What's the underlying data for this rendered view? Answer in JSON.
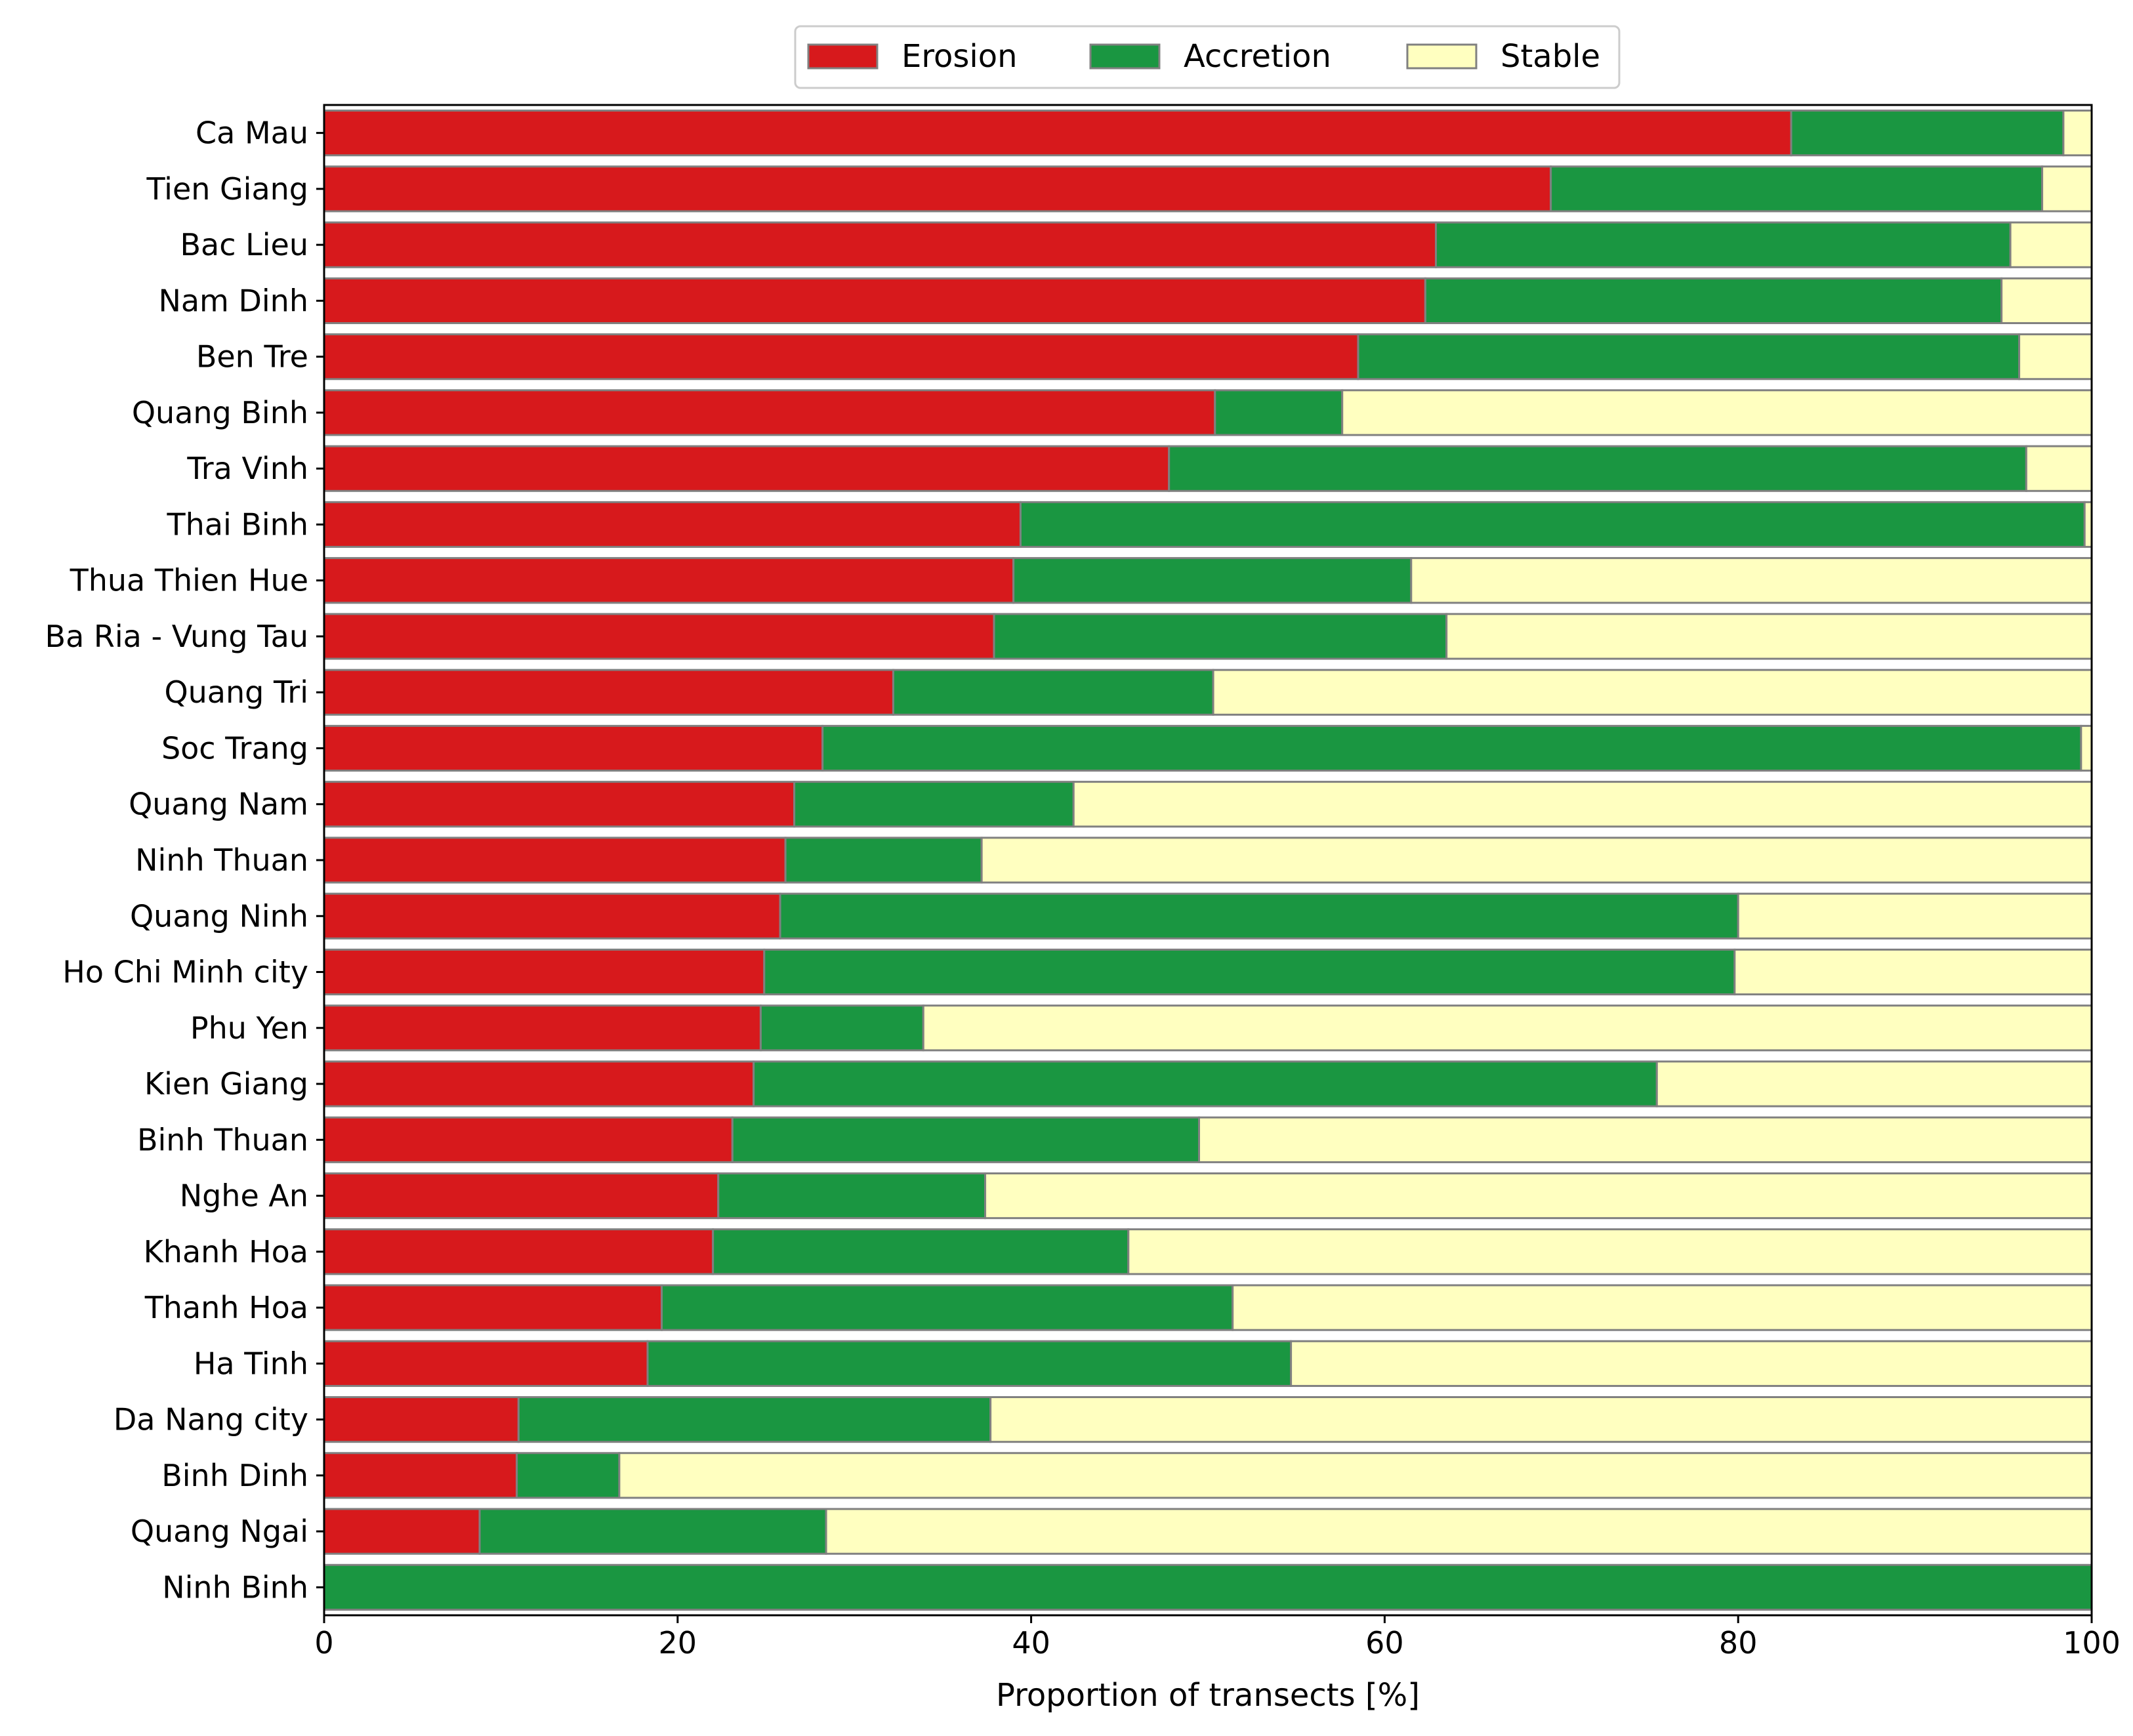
{
  "chart_data": {
    "type": "bar",
    "orientation": "horizontal",
    "stacked": true,
    "title": "",
    "xlabel": "Proportion of transects [%]",
    "ylabel": "",
    "xlim": [
      0,
      100
    ],
    "xticks": [
      0,
      20,
      40,
      60,
      80,
      100
    ],
    "grid": false,
    "legend_position": "top-center",
    "categories": [
      "Ca Mau",
      "Tien Giang",
      "Bac Lieu",
      "Nam Dinh",
      "Ben Tre",
      "Quang Binh",
      "Tra Vinh",
      "Thai Binh",
      "Thua Thien Hue",
      "Ba Ria - Vung Tau",
      "Quang Tri",
      "Soc Trang",
      "Quang Nam",
      "Ninh Thuan",
      "Quang Ninh",
      "Ho Chi Minh city",
      "Phu Yen",
      "Kien Giang",
      "Binh Thuan",
      "Nghe An",
      "Khanh Hoa",
      "Thanh Hoa",
      "Ha Tinh",
      "Da Nang city",
      "Binh Dinh",
      "Quang Ngai",
      "Ninh Binh"
    ],
    "series": [
      {
        "name": "Erosion",
        "color": "#d7191c",
        "values": [
          83.0,
          69.4,
          62.9,
          62.3,
          58.5,
          50.4,
          47.8,
          39.4,
          39.0,
          37.9,
          32.2,
          28.2,
          26.6,
          26.1,
          25.8,
          24.9,
          24.7,
          24.3,
          23.1,
          22.3,
          22.0,
          19.1,
          18.3,
          11.0,
          10.9,
          8.8,
          0.0
        ]
      },
      {
        "name": "Accretion",
        "color": "#1a9641",
        "values": [
          15.4,
          27.8,
          32.5,
          32.6,
          37.4,
          7.2,
          48.5,
          60.2,
          22.5,
          25.6,
          18.1,
          71.2,
          15.8,
          11.1,
          54.2,
          54.9,
          9.2,
          51.1,
          26.4,
          15.1,
          23.5,
          32.3,
          36.4,
          26.7,
          5.8,
          19.6,
          100.0
        ]
      },
      {
        "name": "Stable",
        "color": "#ffffc0",
        "values": [
          1.6,
          2.8,
          4.6,
          5.1,
          4.1,
          42.4,
          3.7,
          0.4,
          38.5,
          36.5,
          49.7,
          0.6,
          57.6,
          62.8,
          20.0,
          20.2,
          66.1,
          24.6,
          50.5,
          62.6,
          54.5,
          48.6,
          45.3,
          62.3,
          83.3,
          71.6,
          0.0
        ]
      }
    ]
  }
}
